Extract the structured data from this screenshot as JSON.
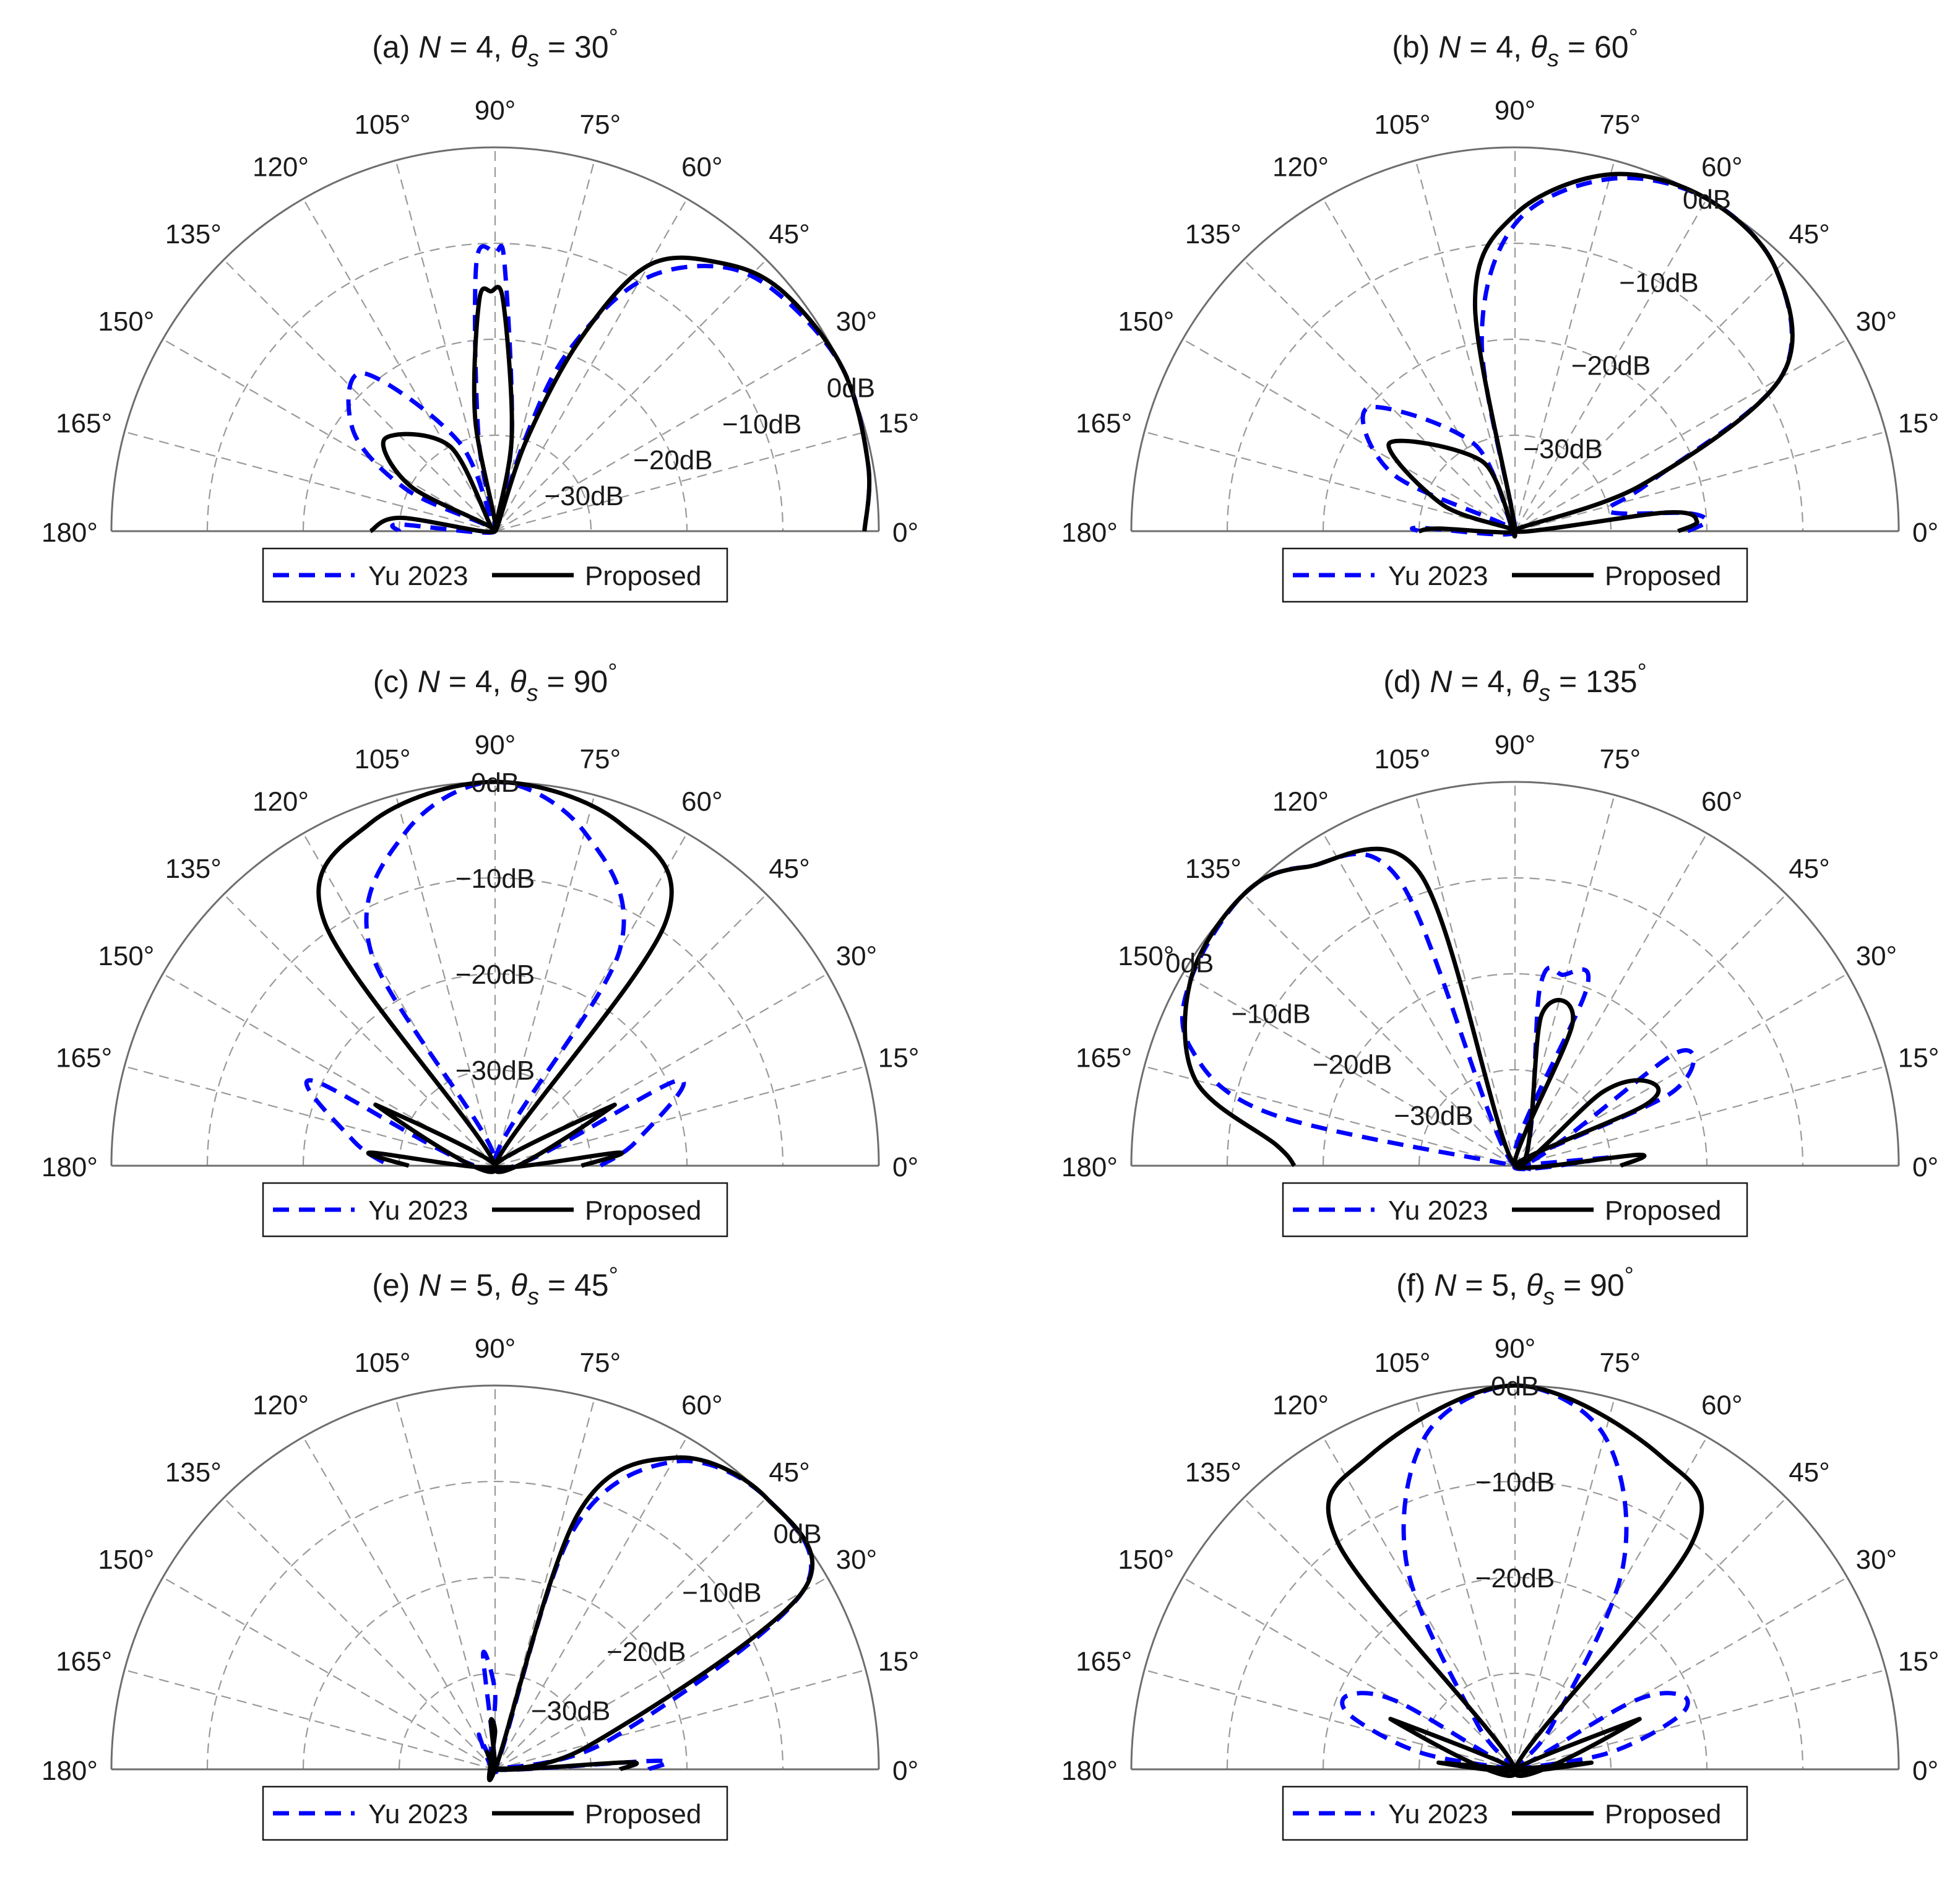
{
  "figure": {
    "colors": {
      "baseline": "#0000ff",
      "proposed": "#000000",
      "grid": "#9a9a9a",
      "frame": "#6e6e6e",
      "text": "#1a1a1a"
    },
    "legend": {
      "baseline_label": "Yu 2023",
      "proposed_label": "Proposed"
    },
    "angle_labels": [
      "0°",
      "15°",
      "30°",
      "45°",
      "60°",
      "75°",
      "90°",
      "105°",
      "120°",
      "135°",
      "150°",
      "165°",
      "180°"
    ]
  },
  "chart_data": [
    {
      "type": "polar",
      "title": "(a) N = 4, θs = 30°",
      "title_parts": {
        "prefix": "(a) ",
        "var": "N",
        "mid": " = 4, ",
        "theta": "θ",
        "sub": "s",
        "eq": " = 30",
        "deg": "°"
      },
      "N": 4,
      "steer_deg": 30,
      "theta_range_deg": [
        0,
        180
      ],
      "r_range_dB": [
        -40,
        0
      ],
      "r_ticks": [
        "0dB",
        "−10dB",
        "−20dB",
        "−30dB"
      ],
      "r_tick_angle_deg": 22,
      "legend": [
        "Yu 2023",
        "Proposed"
      ],
      "series": [
        {
          "name": "Yu 2023",
          "style": "dashed",
          "color": "#0000ff",
          "points_deg_dB": [
            [
              0,
              -1.5
            ],
            [
              10,
              -0.5
            ],
            [
              25,
              0
            ],
            [
              40,
              -1.5
            ],
            [
              50,
              -4
            ],
            [
              60,
              -10
            ],
            [
              68,
              -20
            ],
            [
              72,
              -30
            ],
            [
              76,
              -40
            ],
            [
              80,
              -30
            ],
            [
              88,
              -12
            ],
            [
              90,
              -11
            ],
            [
              94,
              -12
            ],
            [
              100,
              -30
            ],
            [
              104,
              -40
            ],
            [
              112,
              -30
            ],
            [
              130,
              -18.5
            ],
            [
              145,
              -22
            ],
            [
              155,
              -30
            ],
            [
              170,
              -40
            ],
            [
              176,
              -30
            ],
            [
              180,
              -30
            ]
          ]
        },
        {
          "name": "Proposed",
          "style": "solid",
          "color": "#000000",
          "points_deg_dB": [
            [
              0,
              -1.5
            ],
            [
              10,
              -0.5
            ],
            [
              25,
              0
            ],
            [
              40,
              -1
            ],
            [
              50,
              -3.5
            ],
            [
              60,
              -8
            ],
            [
              66,
              -18
            ],
            [
              71,
              -30
            ],
            [
              76,
              -40
            ],
            [
              80,
              -30
            ],
            [
              88,
              -16
            ],
            [
              91,
              -15
            ],
            [
              94,
              -16
            ],
            [
              100,
              -28
            ],
            [
              106,
              -40
            ],
            [
              118,
              -30
            ],
            [
              140,
              -25
            ],
            [
              152,
              -30
            ],
            [
              165,
              -40
            ],
            [
              172,
              -30
            ],
            [
              180,
              -27
            ]
          ]
        }
      ]
    },
    {
      "type": "polar",
      "title": "(b) N = 4, θs = 60°",
      "title_parts": {
        "prefix": "(b) ",
        "var": "N",
        "mid": " = 4, ",
        "theta": "θ",
        "sub": "s",
        "eq": " = 60",
        "deg": "°"
      },
      "N": 4,
      "steer_deg": 60,
      "theta_range_deg": [
        0,
        180
      ],
      "r_range_dB": [
        -40,
        0
      ],
      "r_ticks": [
        "0dB",
        "−10dB",
        "−20dB",
        "−30dB"
      ],
      "r_tick_angle_deg": 60,
      "legend": [
        "Yu 2023",
        "Proposed"
      ],
      "series": [
        {
          "name": "Yu 2023",
          "style": "dashed",
          "color": "#0000ff",
          "points_deg_dB": [
            [
              0,
              -22
            ],
            [
              3,
              -20
            ],
            [
              6,
              -22
            ],
            [
              12,
              -30
            ],
            [
              20,
              -25
            ],
            [
              30,
              -8
            ],
            [
              45,
              -1.5
            ],
            [
              60,
              0
            ],
            [
              75,
              -2
            ],
            [
              90,
              -8
            ],
            [
              100,
              -20
            ],
            [
              106,
              -40
            ],
            [
              115,
              -30
            ],
            [
              140,
              -20
            ],
            [
              155,
              -26
            ],
            [
              170,
              -40
            ],
            [
              178,
              -30
            ],
            [
              180,
              -30
            ]
          ]
        },
        {
          "name": "Proposed",
          "style": "solid",
          "color": "#000000",
          "points_deg_dB": [
            [
              0,
              -23
            ],
            [
              3,
              -21
            ],
            [
              7,
              -24
            ],
            [
              14,
              -40
            ],
            [
              20,
              -26
            ],
            [
              30,
              -8
            ],
            [
              45,
              -1.5
            ],
            [
              60,
              0
            ],
            [
              75,
              -1.5
            ],
            [
              90,
              -7
            ],
            [
              100,
              -16
            ],
            [
              106,
              -40
            ],
            [
              115,
              -32
            ],
            [
              145,
              -24
            ],
            [
              160,
              -32
            ],
            [
              172,
              -40
            ],
            [
              178,
              -32
            ],
            [
              180,
              -30
            ]
          ]
        }
      ]
    },
    {
      "type": "polar",
      "title": "(c) N = 4, θs = 90°",
      "title_parts": {
        "prefix": "(c) ",
        "var": "N",
        "mid": " = 4, ",
        "theta": "θ",
        "sub": "s",
        "eq": " = 90",
        "deg": "°"
      },
      "N": 4,
      "steer_deg": 90,
      "theta_range_deg": [
        0,
        180
      ],
      "r_range_dB": [
        -40,
        0
      ],
      "r_ticks": [
        "0dB",
        "−10dB",
        "−20dB",
        "−30dB"
      ],
      "r_tick_angle_deg": 90,
      "legend": [
        "Yu 2023",
        "Proposed"
      ],
      "series": [
        {
          "name": "Yu 2023",
          "style": "dashed",
          "color": "#0000ff",
          "points_deg_dB": [
            [
              0,
              -29
            ],
            [
              10,
              -25
            ],
            [
              25,
              -19
            ],
            [
              45,
              -40
            ],
            [
              60,
              -14
            ],
            [
              75,
              -4
            ],
            [
              90,
              0
            ],
            [
              105,
              -4
            ],
            [
              120,
              -14
            ],
            [
              135,
              -40
            ],
            [
              155,
              -19
            ],
            [
              170,
              -25
            ],
            [
              180,
              -29
            ]
          ]
        },
        {
          "name": "Proposed",
          "style": "solid",
          "color": "#000000",
          "points_deg_dB": [
            [
              0,
              -31
            ],
            [
              6,
              -27
            ],
            [
              15,
              -40
            ],
            [
              27,
              -26
            ],
            [
              42,
              -40
            ],
            [
              55,
              -9
            ],
            [
              70,
              -2
            ],
            [
              90,
              0
            ],
            [
              110,
              -2
            ],
            [
              125,
              -9
            ],
            [
              138,
              -40
            ],
            [
              153,
              -26
            ],
            [
              165,
              -40
            ],
            [
              174,
              -27
            ],
            [
              180,
              -31
            ]
          ]
        }
      ]
    },
    {
      "type": "polar",
      "title": "(d) N = 4, θs = 135°",
      "title_parts": {
        "prefix": "(d) ",
        "var": "N",
        "mid": " = 4, ",
        "theta": "θ",
        "sub": "s",
        "eq": " = 135",
        "deg": "°"
      },
      "N": 4,
      "steer_deg": 135,
      "theta_range_deg": [
        0,
        180
      ],
      "r_range_dB": [
        -40,
        0
      ],
      "r_ticks": [
        "0dB",
        "−10dB",
        "−20dB",
        "−30dB"
      ],
      "r_tick_angle_deg": 148,
      "legend": [
        "Yu 2023",
        "Proposed"
      ],
      "series": [
        {
          "name": "Yu 2023",
          "style": "dashed",
          "color": "#0000ff",
          "points_deg_dB": [
            [
              0,
              -40
            ],
            [
              5,
              -30
            ],
            [
              10,
              -40
            ],
            [
              25,
              -22
            ],
            [
              35,
              -19.5
            ],
            [
              45,
              -40
            ],
            [
              68,
              -20
            ],
            [
              76,
              -19.5
            ],
            [
              82,
              -21
            ],
            [
              90,
              -40
            ],
            [
              112,
              -8
            ],
            [
              125,
              -2
            ],
            [
              135,
              0
            ],
            [
              150,
              -1
            ],
            [
              160,
              -4
            ],
            [
              168,
              -14
            ],
            [
              172,
              -40
            ],
            [
              178,
              -40
            ],
            [
              180,
              -40
            ]
          ]
        },
        {
          "name": "Proposed",
          "style": "solid",
          "color": "#000000",
          "points_deg_dB": [
            [
              0,
              -29
            ],
            [
              5,
              -27
            ],
            [
              10,
              -40
            ],
            [
              25,
              -25
            ],
            [
              32,
              -23.5
            ],
            [
              40,
              -28
            ],
            [
              48,
              -40
            ],
            [
              68,
              -24
            ],
            [
              80,
              -24
            ],
            [
              88,
              -40
            ],
            [
              108,
              -8
            ],
            [
              125,
              -2
            ],
            [
              135,
              0
            ],
            [
              150,
              -1
            ],
            [
              165,
              -5.5
            ],
            [
              175,
              -15
            ],
            [
              180,
              -17
            ]
          ]
        }
      ]
    },
    {
      "type": "polar",
      "title": "(e) N = 5, θs = 45°",
      "title_parts": {
        "prefix": "(e) ",
        "var": "N",
        "mid": " = 5, ",
        "theta": "θ",
        "sub": "s",
        "eq": " = 45",
        "deg": "°"
      },
      "N": 5,
      "steer_deg": 45,
      "theta_range_deg": [
        0,
        180
      ],
      "r_range_dB": [
        -40,
        0
      ],
      "r_ticks": [
        "0dB",
        "−10dB",
        "−20dB",
        "−30dB"
      ],
      "r_tick_angle_deg": 38,
      "legend": [
        "Yu 2023",
        "Proposed"
      ],
      "series": [
        {
          "name": "Yu 2023",
          "style": "dashed",
          "color": "#0000ff",
          "points_deg_dB": [
            [
              0,
              -24
            ],
            [
              3,
              -23
            ],
            [
              8,
              -40
            ],
            [
              14,
              -28
            ],
            [
              30,
              -3
            ],
            [
              45,
              0
            ],
            [
              60,
              -3
            ],
            [
              72,
              -14
            ],
            [
              80,
              -40
            ],
            [
              90,
              -32
            ],
            [
              96,
              -28
            ],
            [
              100,
              -40
            ],
            [
              115,
              -36
            ],
            [
              130,
              -40
            ],
            [
              180,
              -40
            ]
          ]
        },
        {
          "name": "Proposed",
          "style": "solid",
          "color": "#000000",
          "points_deg_dB": [
            [
              0,
              -27
            ],
            [
              3,
              -26
            ],
            [
              7,
              -40
            ],
            [
              14,
              -30
            ],
            [
              30,
              -3
            ],
            [
              45,
              0
            ],
            [
              60,
              -2.5
            ],
            [
              72,
              -12
            ],
            [
              80,
              -40
            ],
            [
              90,
              -36
            ],
            [
              95,
              -35
            ],
            [
              100,
              -40
            ],
            [
              115,
              -38
            ],
            [
              130,
              -40
            ],
            [
              180,
              -40
            ]
          ]
        }
      ]
    },
    {
      "type": "polar",
      "title": "(f) N = 5, θs = 90°",
      "title_parts": {
        "prefix": "(f) ",
        "var": "N",
        "mid": " = 5, ",
        "theta": "θ",
        "sub": "s",
        "eq": " = 90",
        "deg": "°"
      },
      "N": 5,
      "steer_deg": 90,
      "theta_range_deg": [
        0,
        180
      ],
      "r_range_dB": [
        -40,
        0
      ],
      "r_ticks": [
        "0dB",
        "−10dB",
        "−20dB"
      ],
      "r_tick_angle_deg": 90,
      "legend": [
        "Yu 2023",
        "Proposed"
      ],
      "series": [
        {
          "name": "Yu 2023",
          "style": "dashed",
          "color": "#0000ff",
          "points_deg_dB": [
            [
              0,
              -40
            ],
            [
              10,
              -30
            ],
            [
              18,
              -22
            ],
            [
              24,
              -21
            ],
            [
              30,
              -26
            ],
            [
              38,
              -40
            ],
            [
              50,
              -34
            ],
            [
              62,
              -16
            ],
            [
              75,
              -4
            ],
            [
              90,
              0
            ],
            [
              105,
              -4
            ],
            [
              118,
              -16
            ],
            [
              130,
              -34
            ],
            [
              142,
              -40
            ],
            [
              150,
              -26
            ],
            [
              156,
              -21
            ],
            [
              162,
              -22
            ],
            [
              170,
              -30
            ],
            [
              180,
              -40
            ]
          ]
        },
        {
          "name": "Proposed",
          "style": "solid",
          "color": "#000000",
          "points_deg_dB": [
            [
              0,
              -40
            ],
            [
              5,
              -32
            ],
            [
              10,
              -40
            ],
            [
              22,
              -26
            ],
            [
              32,
              -40
            ],
            [
              52,
              -10
            ],
            [
              65,
              -4
            ],
            [
              90,
              0
            ],
            [
              115,
              -4
            ],
            [
              128,
              -10
            ],
            [
              148,
              -40
            ],
            [
              158,
              -26
            ],
            [
              170,
              -40
            ],
            [
              175,
              -32
            ],
            [
              180,
              -40
            ]
          ]
        }
      ]
    }
  ]
}
